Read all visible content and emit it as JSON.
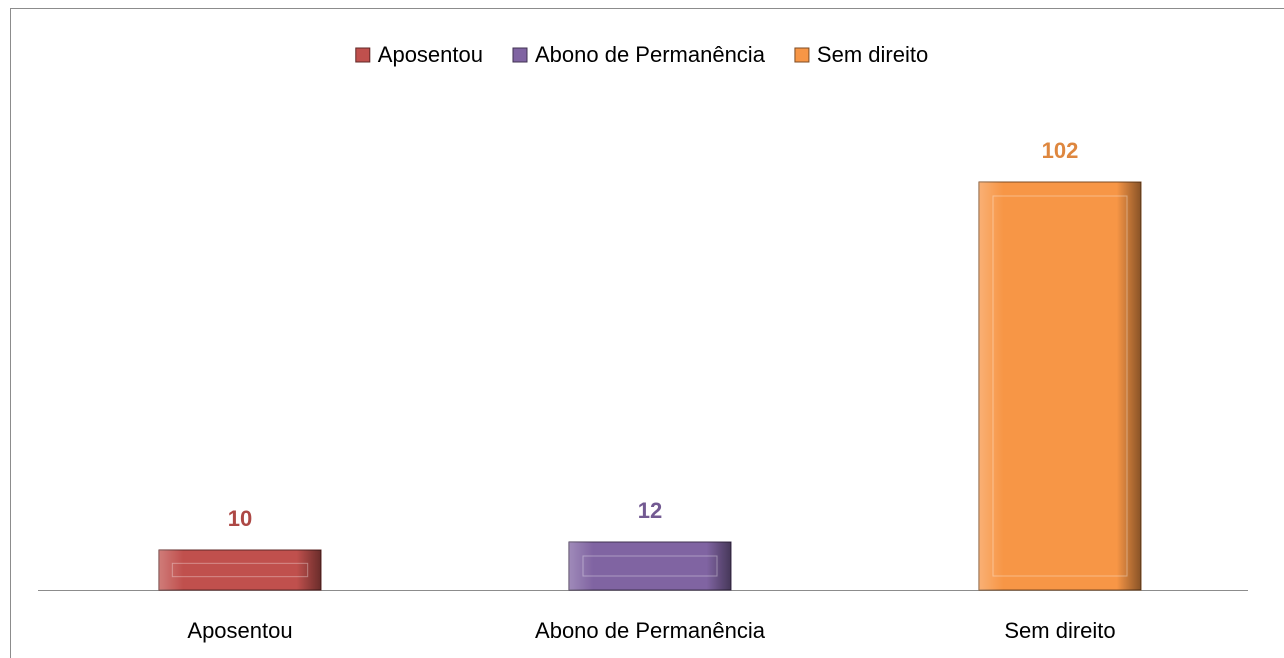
{
  "chart_data": {
    "type": "bar",
    "categories": [
      "Aposentou",
      "Abono de Permanência",
      "Sem direito"
    ],
    "values": [
      10,
      12,
      102
    ],
    "colors": [
      "#c0504d",
      "#8064a2",
      "#f79646"
    ],
    "ylim": [
      0,
      110
    ],
    "legend": "top",
    "data_labels": true
  }
}
